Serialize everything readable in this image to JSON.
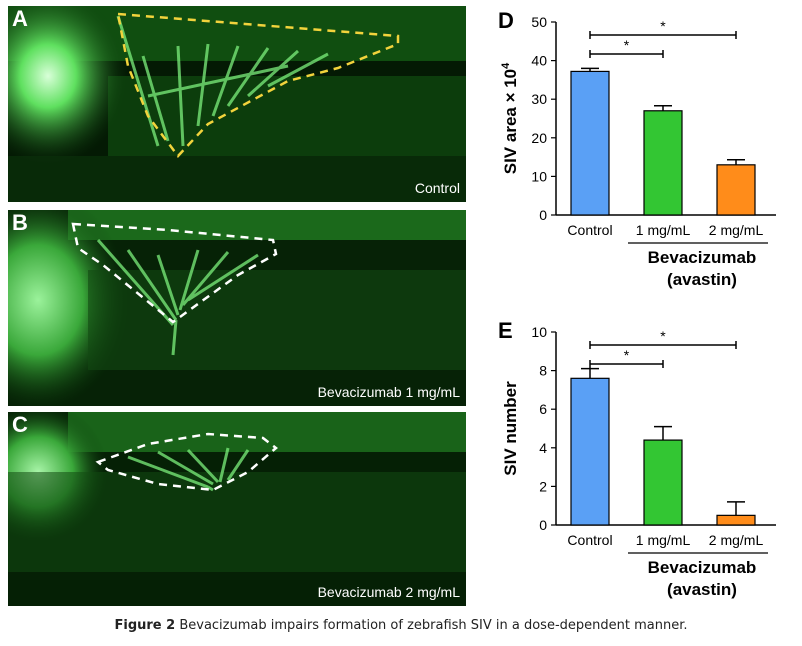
{
  "panels": [
    {
      "letter": "A",
      "caption": "Control"
    },
    {
      "letter": "B",
      "caption": "Bevacizumab 1 mg/mL"
    },
    {
      "letter": "C",
      "caption": "Bevacizumab 2 mg/mL"
    }
  ],
  "caption": {
    "label": "Figure 2",
    "text": "Bevacizumab impairs formation of zebrafish SIV in a dose-dependent manner."
  },
  "chart_data": [
    {
      "panel": "D",
      "type": "bar",
      "categories": [
        "Control",
        "1 mg/mL",
        "2 mg/mL"
      ],
      "values": [
        37.2,
        27.0,
        13.0
      ],
      "errors": [
        0.8,
        1.3,
        1.3
      ],
      "colors": [
        "#5aa0f5",
        "#33c633",
        "#ff8c1a"
      ],
      "ylabel_main": "SIV area × 10",
      "ylabel_sup": "4",
      "ylim": [
        0,
        50
      ],
      "yticks": [
        "0",
        "10",
        "20",
        "30",
        "40",
        "50"
      ],
      "group_label_line1": "Bevacizumab",
      "group_label_line2": "(avastin)",
      "significance": [
        {
          "from": 0,
          "to": 1,
          "label": "*"
        },
        {
          "from": 0,
          "to": 2,
          "label": "*"
        }
      ]
    },
    {
      "panel": "E",
      "type": "bar",
      "categories": [
        "Control",
        "1 mg/mL",
        "2 mg/mL"
      ],
      "values": [
        7.6,
        4.4,
        0.5
      ],
      "errors": [
        0.5,
        0.7,
        0.7
      ],
      "colors": [
        "#5aa0f5",
        "#33c633",
        "#ff8c1a"
      ],
      "ylabel_main": "SIV number",
      "ylabel_sup": "",
      "ylim": [
        0,
        10
      ],
      "yticks": [
        "0",
        "2",
        "4",
        "6",
        "8",
        "10"
      ],
      "group_label_line1": "Bevacizumab",
      "group_label_line2": "(avastin)",
      "significance": [
        {
          "from": 0,
          "to": 1,
          "label": "*"
        },
        {
          "from": 0,
          "to": 2,
          "label": "*"
        }
      ]
    }
  ]
}
